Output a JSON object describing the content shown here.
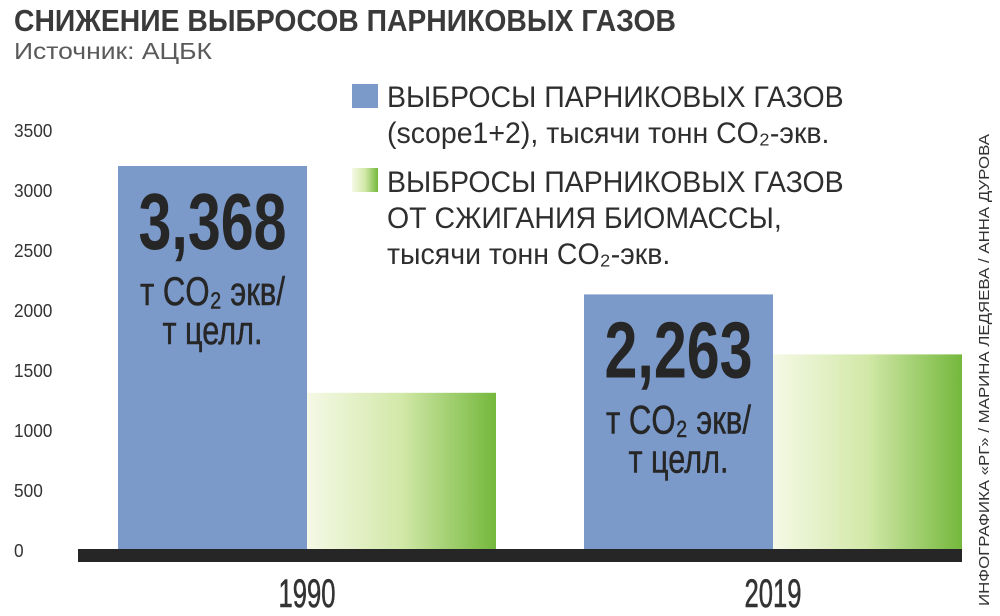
{
  "chart_data": {
    "type": "bar",
    "title": "СНИЖЕНИЕ ВЫБРОСОВ ПАРНИКОВЫХ ГАЗОВ",
    "subtitle": "Источник: АЦБК",
    "categories": [
      "1990",
      "2019"
    ],
    "series": [
      {
        "name": "ВЫБРОСЫ ПАРНИКОВЫХ ГАЗОВ\n(scope1+2), тысячи тонн CO₂-экв.",
        "values": [
          3200,
          2130
        ],
        "color": "#7b99c9"
      },
      {
        "name": "ВЫБРОСЫ ПАРНИКОВЫХ ГАЗОВ\nОТ СЖИГАНИЯ БИОМАССЫ,\nтысячи тонн CO₂-экв.",
        "values": [
          1310,
          1630
        ],
        "color": "#74b83c",
        "gradient": [
          "#f5f9e6",
          "#d2e8a8",
          "#74b83c"
        ]
      }
    ],
    "yticks": [
      0,
      500,
      1000,
      1500,
      2000,
      2500,
      3000,
      3500
    ],
    "ylim": [
      0,
      3500
    ],
    "grid": false,
    "legend_position": "top-right",
    "baseline_color": "#262626",
    "data_labels": [
      {
        "value": "3,368",
        "unit_lines": [
          "т CO₂ экв/",
          "т целл."
        ]
      },
      {
        "value": "2,263",
        "unit_lines": [
          "т CO₂ экв/",
          "т целл."
        ]
      }
    ]
  },
  "credit": "ИНФОГРАФИКА «РГ» / МАРИНА ЛЕДЯЕВА / АННА ДУРОВА"
}
